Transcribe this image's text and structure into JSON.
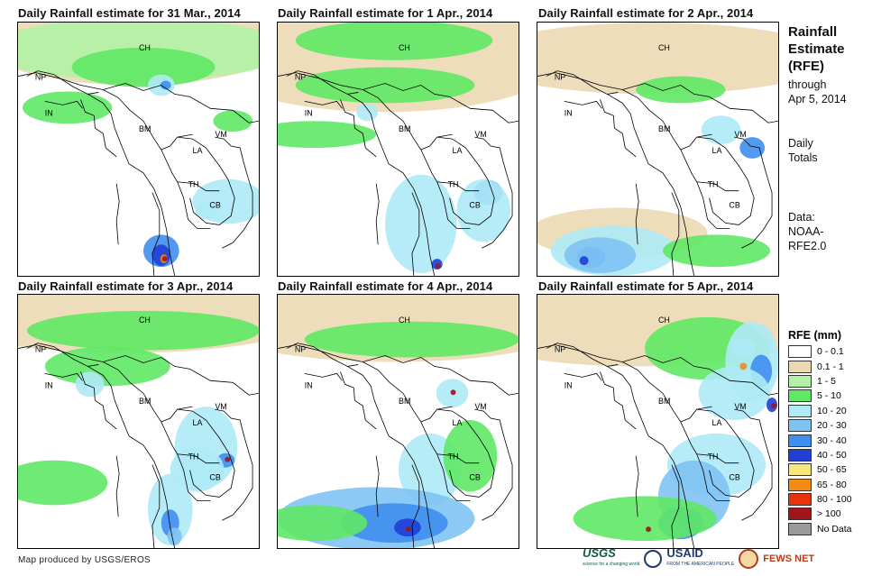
{
  "panels": [
    {
      "title": "Daily Rainfall estimate for 31 Mar., 2014"
    },
    {
      "title": "Daily Rainfall estimate for 1 Apr., 2014"
    },
    {
      "title": "Daily Rainfall estimate for 2 Apr., 2014"
    },
    {
      "title": "Daily Rainfall estimate for 3 Apr., 2014"
    },
    {
      "title": "Daily Rainfall estimate for 4 Apr., 2014"
    },
    {
      "title": "Daily Rainfall estimate for 5 Apr., 2014"
    }
  ],
  "country_labels": [
    "CH",
    "NP",
    "IN",
    "BM",
    "LA",
    "VM",
    "TH",
    "CB"
  ],
  "sidebar": {
    "title_lines": [
      "Rainfall",
      "Estimate",
      "(RFE)"
    ],
    "through": "through",
    "through_date": "Apr 5, 2014",
    "daily": "Daily",
    "totals": "Totals",
    "data_label": "Data:",
    "data_source_1": "NOAA-",
    "data_source_2": "RFE2.0"
  },
  "legend": {
    "title": "RFE (mm)",
    "items": [
      {
        "label": "0 - 0.1",
        "color": "#ffffff"
      },
      {
        "label": "0.1 - 1",
        "color": "#ecd9b4"
      },
      {
        "label": "1 - 5",
        "color": "#b3f2a6"
      },
      {
        "label": "5 - 10",
        "color": "#5fe865"
      },
      {
        "label": "10 - 20",
        "color": "#aeeaf6"
      },
      {
        "label": "20 - 30",
        "color": "#7fc3f3"
      },
      {
        "label": "30 - 40",
        "color": "#3f8ef0"
      },
      {
        "label": "40 - 50",
        "color": "#1f3fd6"
      },
      {
        "label": "50 - 65",
        "color": "#f7e67a"
      },
      {
        "label": "65 - 80",
        "color": "#f38b12"
      },
      {
        "label": "80 - 100",
        "color": "#e8330e"
      },
      {
        "label": "> 100",
        "color": "#a1141a"
      },
      {
        "label": "No Data",
        "color": "#9a9a9a"
      }
    ]
  },
  "footer": {
    "credit": "Map produced by USGS/EROS",
    "usgs": "USGS",
    "usgs_tagline": "science for a changing world",
    "usaid": "USAID",
    "usaid_tagline": "FROM THE AMERICAN PEOPLE",
    "fews": "FEWS NET"
  }
}
